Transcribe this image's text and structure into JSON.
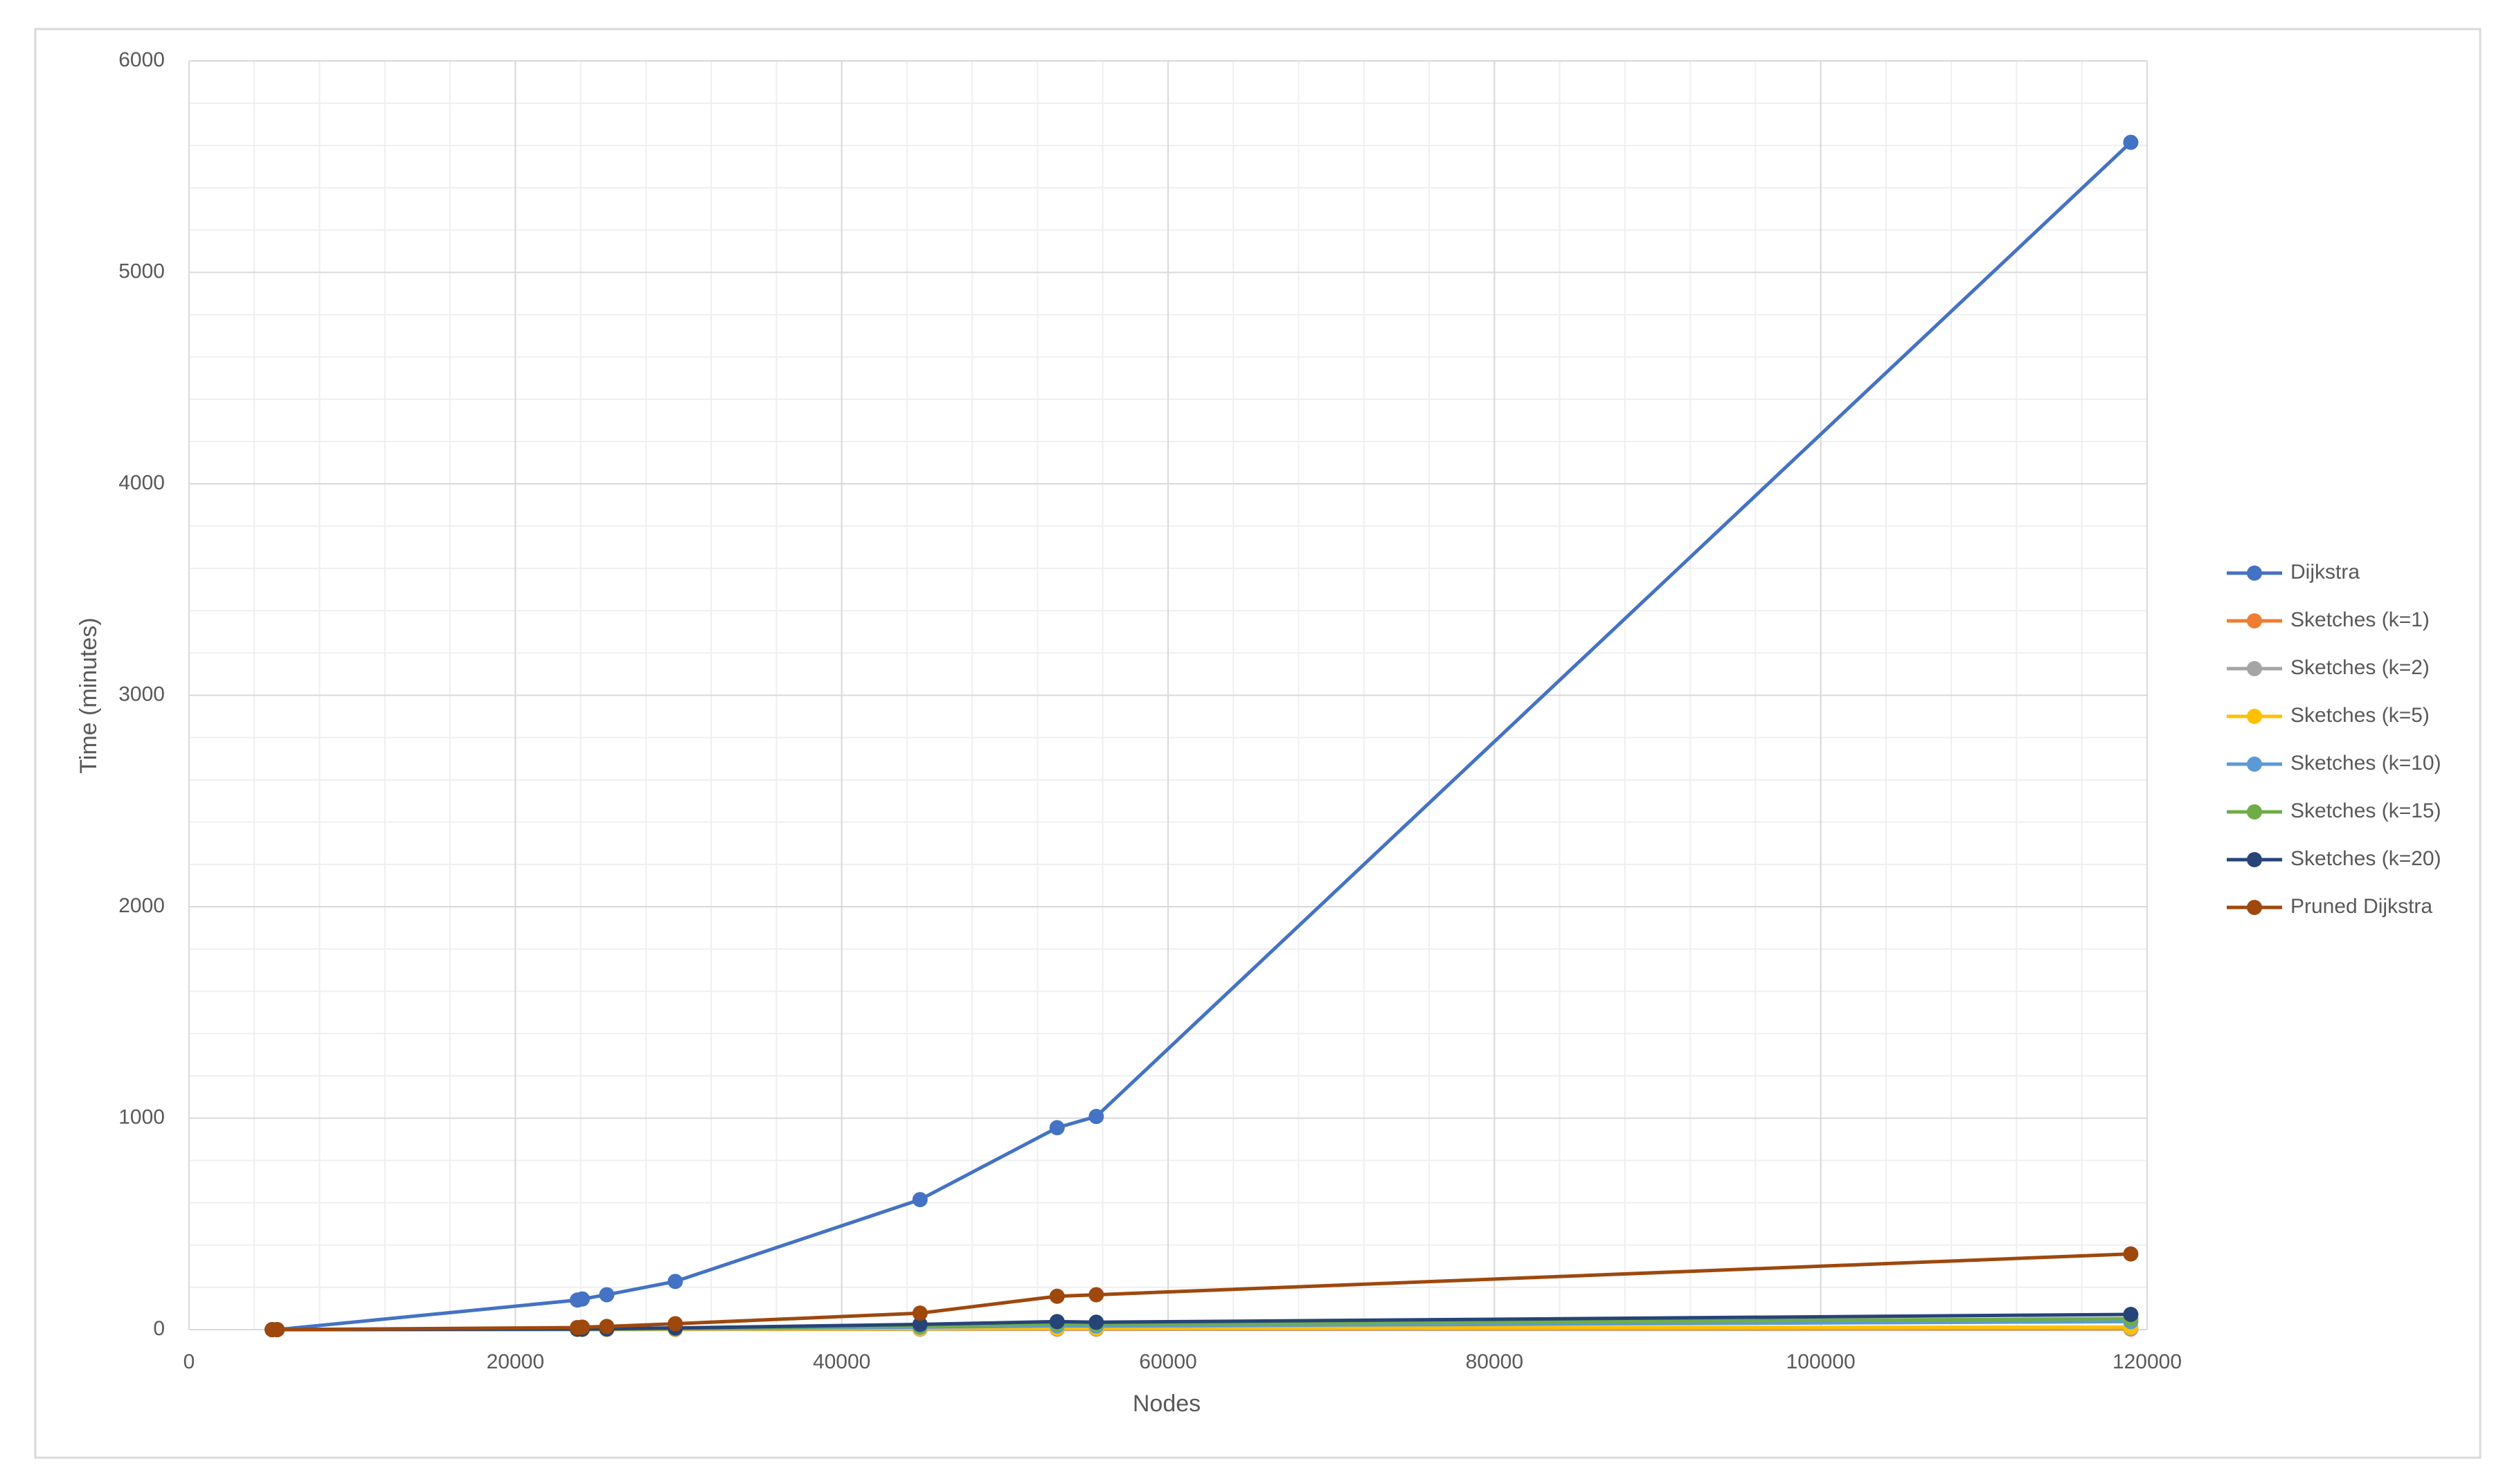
{
  "chart_data": {
    "type": "line",
    "x_label": "Nodes",
    "y_label": "Time (minutes)",
    "xlim": [
      0,
      120000
    ],
    "xticks": [
      0,
      20000,
      40000,
      60000,
      80000,
      100000,
      120000
    ],
    "ylim": [
      0,
      6000
    ],
    "yticks": [
      0,
      1000,
      2000,
      3000,
      4000,
      5000,
      6000
    ],
    "grid": true,
    "minor_grid": true,
    "legend": "right",
    "x": [
      5100,
      5400,
      23800,
      24100,
      25600,
      29800,
      44800,
      53200,
      55600,
      119000
    ],
    "series": [
      {
        "name": "Dijkstra",
        "color": "#4472c4",
        "values": [
          0,
          0,
          140,
          145,
          165,
          228,
          615,
          955,
          1008,
          5615
        ]
      },
      {
        "name": "Sketches (k=1)",
        "color": "#ed7d31",
        "values": [
          0,
          0,
          1,
          1,
          1,
          1,
          2,
          2,
          2,
          3
        ]
      },
      {
        "name": "Sketches (k=2)",
        "color": "#a5a5a5",
        "values": [
          0,
          0,
          1,
          1,
          1,
          2,
          3,
          4,
          4,
          6
        ]
      },
      {
        "name": "Sketches (k=5)",
        "color": "#ffc000",
        "values": [
          0,
          0,
          1,
          1,
          2,
          3,
          5,
          7,
          7,
          12
        ]
      },
      {
        "name": "Sketches (k=10)",
        "color": "#5b9bd5",
        "values": [
          0,
          0,
          2,
          2,
          3,
          5,
          12,
          18,
          17,
          38
        ]
      },
      {
        "name": "Sketches (k=15)",
        "color": "#70ad47",
        "values": [
          0,
          0,
          2,
          2,
          3,
          6,
          18,
          27,
          26,
          52
        ]
      },
      {
        "name": "Sketches (k=20)",
        "color": "#264478",
        "values": [
          0,
          0,
          3,
          3,
          4,
          8,
          25,
          38,
          35,
          72
        ]
      },
      {
        "name": "Pruned Dijkstra",
        "color": "#9e480e",
        "values": [
          0,
          0,
          10,
          12,
          15,
          28,
          78,
          158,
          165,
          358
        ]
      }
    ]
  }
}
